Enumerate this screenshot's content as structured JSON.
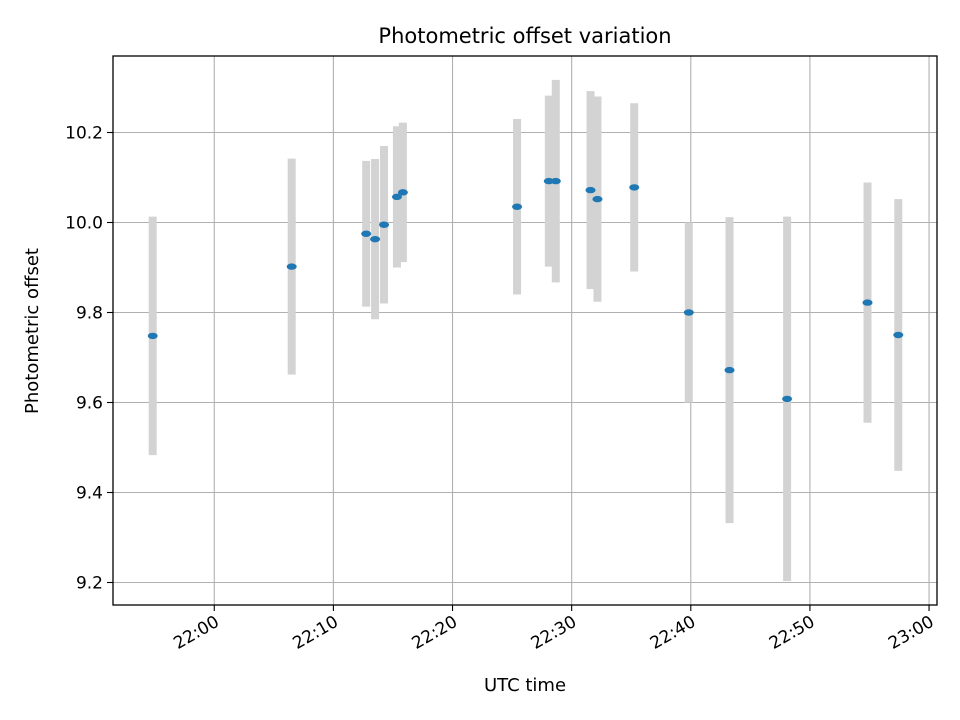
{
  "chart_data": {
    "type": "scatter",
    "title": "Photometric offset variation",
    "xlabel": "UTC time",
    "ylabel": "Photometric offset",
    "grid": true,
    "x_tick_labels": [
      "22:00",
      "22:10",
      "22:20",
      "22:30",
      "22:40",
      "22:50",
      "23:00"
    ],
    "y_tick_labels": [
      "9.2",
      "9.4",
      "9.6",
      "9.8",
      "10.0",
      "10.2"
    ],
    "y_ticks": [
      9.2,
      9.4,
      9.6,
      9.8,
      10.0,
      10.2
    ],
    "xlim": [
      "21:51:30",
      "23:00:40"
    ],
    "ylim": [
      9.15,
      10.37
    ],
    "point_color": "#1f77b4",
    "errorbar_color": "#d3d3d3",
    "points": [
      {
        "t": "21:54:50",
        "y": 9.748,
        "yerr": 0.265
      },
      {
        "t": "22:06:30",
        "y": 9.902,
        "yerr": 0.24
      },
      {
        "t": "22:12:45",
        "y": 9.975,
        "yerr": 0.162
      },
      {
        "t": "22:13:30",
        "y": 9.963,
        "yerr": 0.178
      },
      {
        "t": "22:14:15",
        "y": 9.995,
        "yerr": 0.175
      },
      {
        "t": "22:15:20",
        "y": 10.057,
        "yerr": 0.157
      },
      {
        "t": "22:15:50",
        "y": 10.067,
        "yerr": 0.155
      },
      {
        "t": "22:25:25",
        "y": 10.035,
        "yerr": 0.195
      },
      {
        "t": "22:28:05",
        "y": 10.092,
        "yerr": 0.19
      },
      {
        "t": "22:28:40",
        "y": 10.092,
        "yerr": 0.225
      },
      {
        "t": "22:31:35",
        "y": 10.072,
        "yerr": 0.22
      },
      {
        "t": "22:32:10",
        "y": 10.052,
        "yerr": 0.228
      },
      {
        "t": "22:35:15",
        "y": 10.078,
        "yerr": 0.187
      },
      {
        "t": "22:39:50",
        "y": 9.8,
        "yerr": 0.2
      },
      {
        "t": "22:43:15",
        "y": 9.672,
        "yerr": 0.34
      },
      {
        "t": "22:48:05",
        "y": 9.608,
        "yerr": 0.405
      },
      {
        "t": "22:54:50",
        "y": 9.822,
        "yerr": 0.267
      },
      {
        "t": "22:57:25",
        "y": 9.75,
        "yerr": 0.302
      }
    ]
  }
}
